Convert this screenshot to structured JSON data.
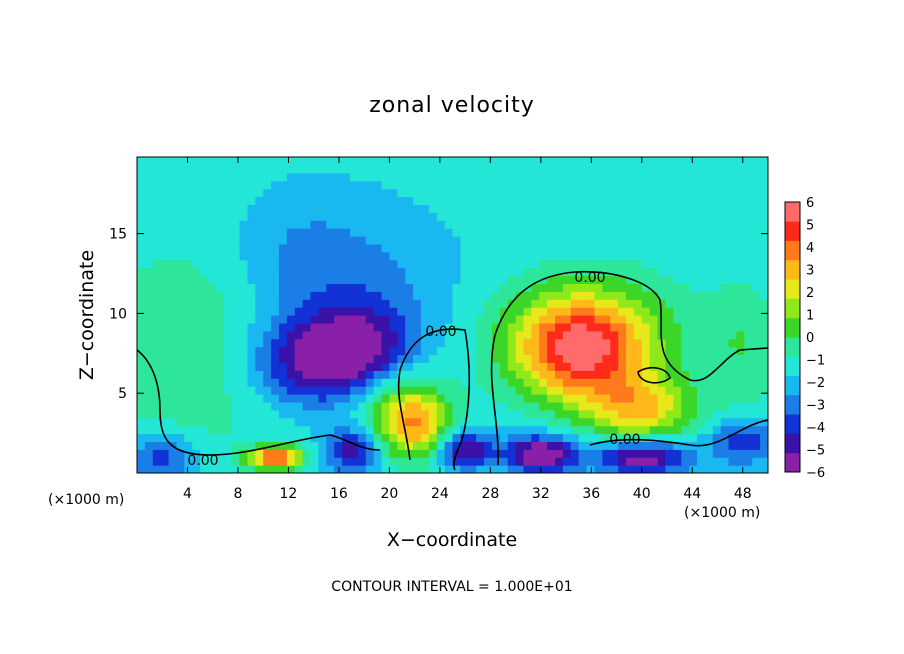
{
  "chart_data": {
    "type": "heatmap",
    "title": "zonal velocity",
    "xlabel": "X−coordinate",
    "ylabel": "Z−coordinate",
    "x_unit_left": "(×1000 m)",
    "x_unit_right": "(×1000 m)",
    "xlim": [
      0,
      50
    ],
    "ylim": [
      0,
      19.8
    ],
    "x_ticks": [
      4,
      8,
      12,
      16,
      20,
      24,
      28,
      32,
      36,
      40,
      44,
      48
    ],
    "y_ticks": [
      5,
      10,
      15
    ],
    "colorbar": {
      "range": [
        -6,
        6
      ],
      "tick_values": [
        6,
        5,
        4,
        3,
        2,
        1,
        0,
        -1,
        -2,
        -3,
        -4,
        -5,
        -6
      ],
      "tick_labels": [
        "6",
        "5",
        "4",
        "3",
        "2",
        "1",
        "0",
        "−1",
        "−2",
        "−3",
        "−4",
        "−5",
        "−6"
      ],
      "colors": [
        "#8a1fa8",
        "#3a12a8",
        "#1232d6",
        "#1a7ee6",
        "#1ab8f0",
        "#23e6d6",
        "#2ee69a",
        "#3cd628",
        "#8ee81a",
        "#e6e81a",
        "#ffb81a",
        "#ff7a1a",
        "#ff2a1a",
        "#ff6a6a"
      ]
    },
    "background_value": -1.5,
    "features": [
      {
        "x": 15,
        "z": 7,
        "value": -5,
        "sx": 4,
        "sz": 2
      },
      {
        "x": 18,
        "z": 8,
        "value": -2.5,
        "sx": 3,
        "sz": 2
      },
      {
        "x": 13,
        "z": 13,
        "value": -2,
        "sx": 4,
        "sz": 3
      },
      {
        "x": 20,
        "z": 12,
        "value": -1.2,
        "sx": 4,
        "sz": 3
      },
      {
        "x": 35,
        "z": 7.5,
        "value": 4.8,
        "sx": 3.5,
        "sz": 2.2
      },
      {
        "x": 40,
        "z": 4,
        "value": 3.5,
        "sx": 3,
        "sz": 1.5
      },
      {
        "x": 36,
        "z": 9,
        "value": 2.5,
        "sx": 5,
        "sz": 2.5
      },
      {
        "x": 22,
        "z": 3,
        "value": 3.8,
        "sx": 2,
        "sz": 1.5
      },
      {
        "x": 20,
        "z": 5,
        "value": 2.0,
        "sx": 3,
        "sz": 2
      },
      {
        "x": 5,
        "z": 8,
        "value": 1.0,
        "sx": 6,
        "sz": 5
      },
      {
        "x": 11,
        "z": 1,
        "value": 5.5,
        "sx": 1.5,
        "sz": 0.5
      },
      {
        "x": 17,
        "z": 1.5,
        "value": -4,
        "sx": 1.5,
        "sz": 1
      },
      {
        "x": 26,
        "z": 1.5,
        "value": -4.5,
        "sx": 1.5,
        "sz": 0.8
      },
      {
        "x": 32,
        "z": 1.2,
        "value": -5.5,
        "sx": 2,
        "sz": 0.8
      },
      {
        "x": 40,
        "z": 1,
        "value": -5,
        "sx": 2.5,
        "sz": 0.8
      },
      {
        "x": 48,
        "z": 2,
        "value": -3,
        "sx": 2,
        "sz": 1
      },
      {
        "x": 2,
        "z": 1,
        "value": -3,
        "sx": 2,
        "sz": 1
      },
      {
        "x": 48,
        "z": 8,
        "value": 1,
        "sx": 2,
        "sz": 3
      }
    ],
    "contour_label": "0.00",
    "contour_interval_text": "CONTOUR INTERVAL = 1.000E+01"
  }
}
